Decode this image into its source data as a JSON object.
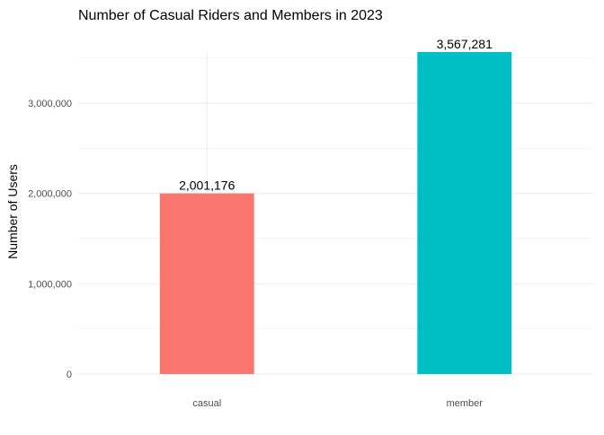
{
  "chart_data": {
    "type": "bar",
    "title": "Number of Casual Riders and Members in 2023",
    "xlabel": "",
    "ylabel": "Number of Users",
    "categories": [
      "casual",
      "member"
    ],
    "values": [
      2001176,
      3567281
    ],
    "value_labels": [
      "2,001,176",
      "3,567,281"
    ],
    "colors": [
      "#F8766D",
      "#00BFC4"
    ],
    "ylim": [
      0,
      3567281
    ],
    "y_ticks": [
      0,
      1000000,
      2000000,
      3000000
    ],
    "y_tick_labels": [
      "0",
      "1,000,000",
      "2,000,000",
      "3,000,000"
    ],
    "grid": true,
    "legend": "none"
  }
}
